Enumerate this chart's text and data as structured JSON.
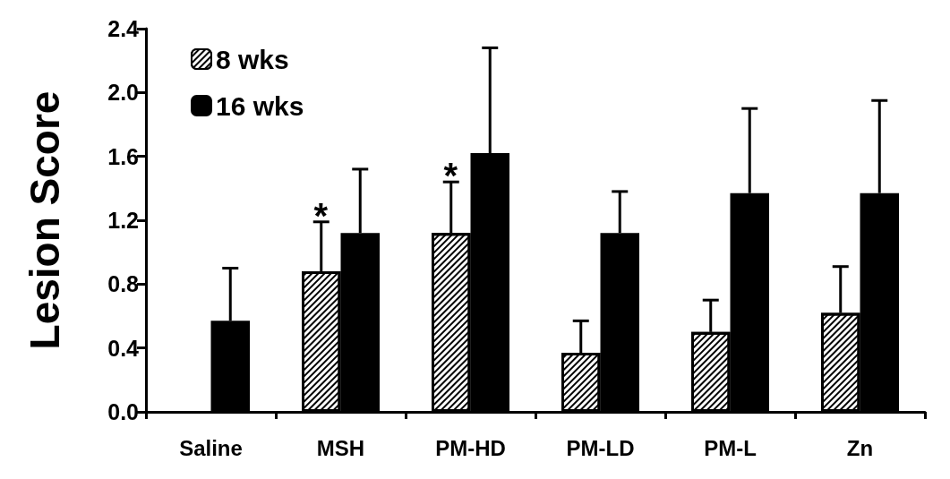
{
  "chart_data": {
    "type": "bar",
    "ylabel": "Lesion Score",
    "categories": [
      "Saline",
      "MSH",
      "PM-HD",
      "PM-LD",
      "PM-L",
      "Zn"
    ],
    "series": [
      {
        "name": "8 wks",
        "color": "#ffffff",
        "values": [
          null,
          0.88,
          1.12,
          0.37,
          0.5,
          0.62
        ],
        "errors": [
          null,
          [
            0.88,
            1.19
          ],
          [
            1.12,
            1.44
          ],
          [
            0.37,
            0.57
          ],
          [
            0.5,
            0.7
          ],
          [
            0.62,
            0.91
          ]
        ]
      },
      {
        "name": "16 wks",
        "color": "#000000",
        "values": [
          0.57,
          1.12,
          1.62,
          1.12,
          1.37,
          1.37
        ],
        "errors": [
          [
            0.57,
            0.9
          ],
          [
            1.12,
            1.52
          ],
          [
            1.62,
            2.28
          ],
          [
            1.12,
            1.38
          ],
          [
            1.37,
            1.9
          ],
          [
            1.37,
            1.95
          ]
        ]
      }
    ],
    "ylim": [
      0,
      2.4
    ],
    "yticks": [
      {
        "value": 0,
        "label": "0.0"
      },
      {
        "value": 0.4,
        "label": "0.4"
      },
      {
        "value": 0.8,
        "label": "0.8"
      },
      {
        "value": 1.2,
        "label": "1.2"
      },
      {
        "value": 1.6,
        "label": "1.6"
      },
      {
        "value": 2,
        "label": "2.0"
      },
      {
        "value": 2.4,
        "label": "2.4"
      }
    ],
    "annotations": [
      {
        "text": "*",
        "x": "MSH",
        "y": 0.88
      },
      {
        "text": "*",
        "x": "PM-HD",
        "y": 1.12
      }
    ],
    "legend": "top left",
    "grid": false
  }
}
